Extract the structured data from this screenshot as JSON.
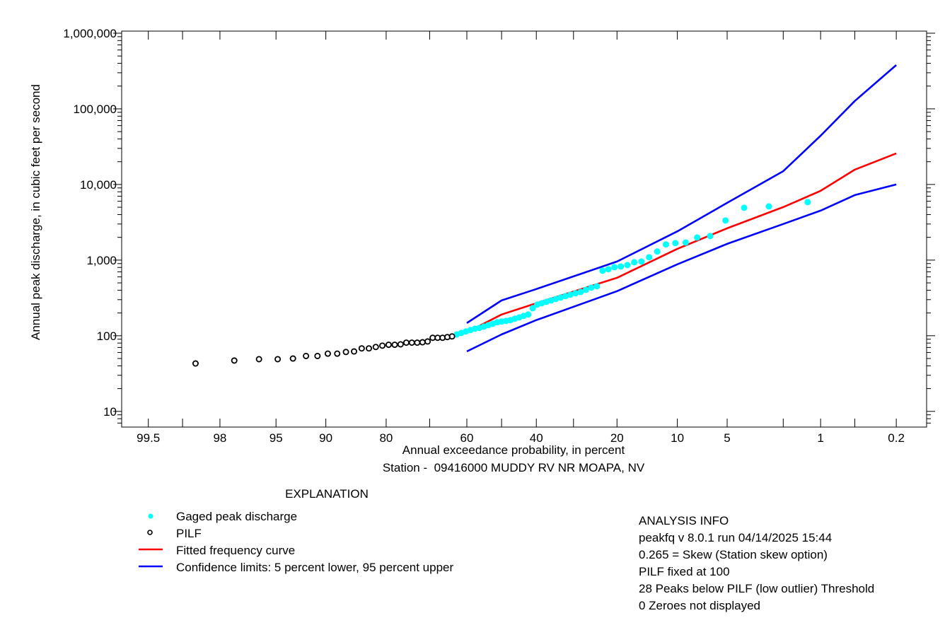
{
  "chart_data": {
    "type": "scatter",
    "title": "",
    "xlabel": "Annual exceedance probability, in percent",
    "ylabel": "Annual peak discharge, in cubic feet per second",
    "subtitle": "Station -  09416000 MUDDY RV NR MOAPA, NV",
    "x_scale": "normal-probability (exceedance, reversed)",
    "y_scale": "log",
    "xlim": [
      99.72,
      0.097
    ],
    "ylim": [
      6.2,
      1066000
    ],
    "grid": false,
    "x_ticks": [
      99.5,
      99,
      98,
      95,
      90,
      80,
      70,
      60,
      50,
      40,
      30,
      20,
      10,
      5,
      2,
      1,
      0.5,
      0.2
    ],
    "x_tick_labels": [
      "99.5",
      "98",
      "95",
      "90",
      "80",
      "60",
      "40",
      "20",
      "10",
      "5",
      "1",
      "0.2"
    ],
    "x_tick_label_values": [
      99.5,
      98,
      95,
      90,
      80,
      60,
      40,
      20,
      10,
      5,
      1,
      0.2
    ],
    "y_ticks": [
      10,
      100,
      1000,
      10000,
      100000,
      1000000
    ],
    "y_tick_labels": [
      "10",
      "100",
      "1,000",
      "10,000",
      "100,000",
      "1,000,000"
    ],
    "plotting_position_denominator": 78,
    "series": [
      {
        "name": "Gaged peak discharge",
        "kind": "points",
        "color": "#00FFFF",
        "rank_start": 1,
        "values": [
          5840,
          5130,
          4920,
          3340,
          2080,
          1990,
          1710,
          1680,
          1610,
          1300,
          1090,
          957,
          937,
          861,
          824,
          807,
          756,
          724,
          451,
          432,
          405,
          379,
          364,
          349,
          334,
          320,
          306,
          293,
          281,
          269,
          258,
          231,
          191,
          183,
          175,
          168,
          161,
          157,
          154,
          151,
          144,
          138,
          132,
          127,
          124,
          119,
          114,
          109,
          104
        ]
      },
      {
        "name": "PILF",
        "kind": "open-circles",
        "color": "#000000",
        "rank_start": 50,
        "values": [
          98,
          96,
          94,
          94,
          94,
          84,
          82,
          81,
          81,
          81,
          77,
          76,
          76,
          74,
          71,
          68,
          68,
          62,
          61,
          58,
          58,
          54,
          54,
          50,
          49,
          49,
          47,
          43
        ]
      },
      {
        "name": "Fitted frequency curve",
        "kind": "line",
        "color": "#FF0000",
        "x": [
          60,
          50,
          40,
          20,
          10,
          5,
          2,
          1,
          0.5,
          0.2
        ],
        "y": [
          111,
          191,
          269,
          583,
          1410,
          2630,
          5020,
          8240,
          15700,
          25800
        ]
      },
      {
        "name": "Confidence limits: 5 percent lower, 95 percent upper",
        "kind": "line",
        "color": "#0000FF",
        "x": [
          60,
          50,
          40,
          20,
          10,
          5,
          2,
          1,
          0.5,
          0.2
        ],
        "y": [
          147,
          293,
          414,
          957,
          2400,
          5710,
          15000,
          44100,
          127000,
          379000
        ],
        "part": "upper"
      },
      {
        "name": "Confidence limits: 5 percent lower, 95 percent upper",
        "kind": "line",
        "color": "#0000FF",
        "x": [
          60,
          50,
          40,
          20,
          10,
          5,
          2,
          1,
          0.5,
          0.2
        ],
        "y": [
          62,
          104,
          161,
          388,
          880,
          1640,
          3000,
          4510,
          7240,
          10000
        ],
        "part": "lower"
      }
    ]
  },
  "legend": {
    "title": "EXPLANATION",
    "items": [
      {
        "label": "Gaged peak discharge",
        "marker": "filled-dot",
        "color": "#00FFFF"
      },
      {
        "label": "PILF",
        "marker": "open-circle",
        "color": "#000000"
      },
      {
        "label": "Fitted frequency curve",
        "marker": "line",
        "color": "#FF0000"
      },
      {
        "label": "Confidence limits: 5 percent lower, 95 percent upper",
        "marker": "line",
        "color": "#0000FF"
      }
    ]
  },
  "analysis_info": {
    "title": "ANALYSIS INFO",
    "lines": [
      "peakfq v 8.0.1 run 04/14/2025 15:44",
      "0.265 = Skew (Station skew option)",
      "PILF fixed at 100",
      "28 Peaks below PILF (low outlier) Threshold",
      "0 Zeroes not displayed"
    ]
  }
}
